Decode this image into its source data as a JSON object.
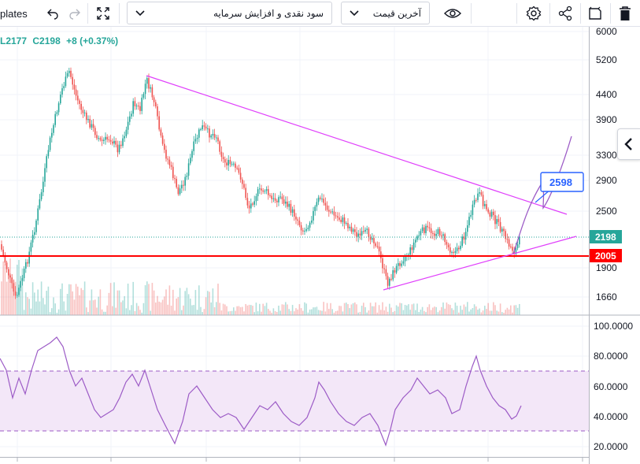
{
  "toolbar": {
    "templates_label": "plates",
    "indicator_dropdown": "سود نقدی و افزایش سرمایه",
    "price_dropdown": "آخرین قیمت"
  },
  "legend": {
    "low": "L2177",
    "close": "C2198",
    "change": "+8 (+0.37%)"
  },
  "price_axis": {
    "ticks": [
      "6000",
      "5200",
      "4400",
      "3900",
      "3300",
      "2900",
      "2500",
      "1900",
      "1660"
    ]
  },
  "rsi_axis": {
    "ticks": [
      "100.0000",
      "80.0000",
      "60.0000",
      "40.0000",
      "20.0000"
    ]
  },
  "badges": {
    "current": "2198",
    "support": "2005"
  },
  "callout": {
    "target": "2598"
  },
  "colors": {
    "up": "#26a69a",
    "down": "#ef5350",
    "trend": "#e040fb",
    "support": "#ff0000",
    "rsi": "#9c5bc6",
    "rsi_band": "#e9d6f2",
    "badge_current": "#26a69a",
    "badge_support": "#ff0000",
    "callout_border": "#2962ff"
  },
  "icons": [
    "undo-icon",
    "redo-icon",
    "fullscreen-icon",
    "chevron-down-icon",
    "eye-icon",
    "settings-icon",
    "share-icon",
    "snapshot-icon",
    "trash-icon",
    "chevron-left-icon"
  ],
  "chart_data": {
    "type": "candlestick",
    "price_scale": "log",
    "rsi_bands": [
      30,
      70
    ],
    "current_price": 2198,
    "support_level": 2005,
    "target_price": 2598
  }
}
